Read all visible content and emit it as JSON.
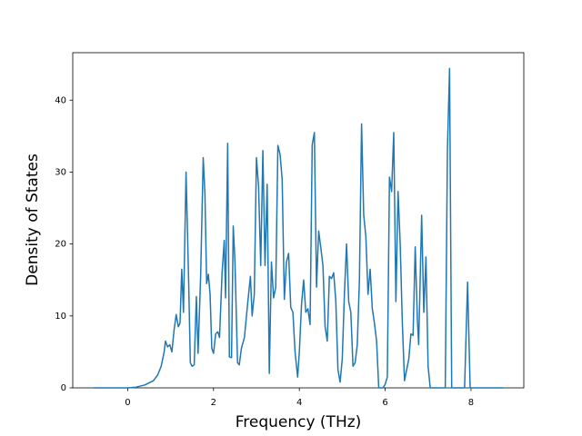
{
  "chart_data": {
    "type": "line",
    "xlabel": "Frequency (THz)",
    "ylabel": "Density of States",
    "color": "#1f77b4",
    "xlim": [
      -1.28,
      9.23
    ],
    "ylim": [
      0,
      46.6
    ],
    "xticks": [
      0,
      2,
      4,
      6,
      8
    ],
    "yticks": [
      0,
      10,
      20,
      30,
      40
    ],
    "x": [
      -0.8,
      0,
      0.2,
      0.4,
      0.6,
      0.7,
      0.78,
      0.85,
      0.88,
      0.93,
      0.98,
      1.03,
      1.08,
      1.13,
      1.18,
      1.22,
      1.26,
      1.3,
      1.36,
      1.42,
      1.46,
      1.5,
      1.55,
      1.6,
      1.64,
      1.7,
      1.76,
      1.8,
      1.84,
      1.88,
      1.92,
      1.96,
      2.0,
      2.05,
      2.1,
      2.14,
      2.2,
      2.25,
      2.28,
      2.33,
      2.37,
      2.42,
      2.46,
      2.5,
      2.56,
      2.6,
      2.65,
      2.72,
      2.8,
      2.86,
      2.9,
      2.95,
      3.0,
      3.05,
      3.1,
      3.15,
      3.2,
      3.25,
      3.3,
      3.35,
      3.4,
      3.45,
      3.5,
      3.55,
      3.6,
      3.65,
      3.7,
      3.75,
      3.8,
      3.85,
      3.9,
      3.96,
      4.0,
      4.05,
      4.1,
      4.15,
      4.2,
      4.25,
      4.3,
      4.35,
      4.4,
      4.45,
      4.5,
      4.55,
      4.6,
      4.65,
      4.7,
      4.75,
      4.8,
      4.85,
      4.9,
      4.95,
      5.0,
      5.05,
      5.1,
      5.15,
      5.2,
      5.25,
      5.3,
      5.35,
      5.4,
      5.45,
      5.5,
      5.55,
      5.6,
      5.65,
      5.7,
      5.75,
      5.8,
      5.85,
      5.95,
      6.0,
      6.05,
      6.1,
      6.15,
      6.2,
      6.25,
      6.3,
      6.35,
      6.4,
      6.45,
      6.5,
      6.55,
      6.6,
      6.65,
      6.7,
      6.75,
      6.78,
      6.85,
      6.9,
      6.95,
      7.0,
      7.05,
      7.4,
      7.45,
      7.5,
      7.55,
      7.85,
      7.92,
      7.98,
      8.75
    ],
    "values": [
      0,
      0,
      0.1,
      0.4,
      1.0,
      1.8,
      3.0,
      5.0,
      6.5,
      5.7,
      6.0,
      5.0,
      8.0,
      10.2,
      8.5,
      9.0,
      16.5,
      10.5,
      30,
      15,
      3.5,
      3.0,
      3.2,
      12.7,
      4.8,
      15.5,
      32,
      27,
      14.5,
      15.8,
      13,
      5.5,
      4.8,
      7.5,
      7.8,
      7.0,
      16,
      20.5,
      12.5,
      34,
      4.3,
      4.2,
      22.5,
      17.5,
      3.5,
      3.2,
      5.5,
      7,
      12,
      15.5,
      10,
      13,
      32,
      28,
      17,
      33,
      17,
      28.3,
      2.0,
      17.5,
      12.5,
      14,
      33.7,
      32.5,
      29,
      12.3,
      17.5,
      18.7,
      11.2,
      10.5,
      5,
      1.5,
      5,
      11.5,
      15,
      10.5,
      11,
      8.8,
      33.8,
      35.5,
      14,
      21.8,
      19.5,
      17,
      8.5,
      6.5,
      15.5,
      15.2,
      16,
      12,
      2.5,
      0.8,
      4,
      13,
      20,
      12,
      10.5,
      3,
      3.5,
      6,
      15,
      36.7,
      24,
      21,
      13,
      16.5,
      11,
      9,
      6.5,
      0,
      0,
      0.5,
      1.5,
      29.3,
      27.3,
      35.5,
      12,
      27.3,
      20,
      9,
      1,
      2.5,
      4,
      7.5,
      7.3,
      19.6,
      9.5,
      6,
      24,
      10.5,
      18.2,
      3,
      0,
      0,
      33,
      44.4,
      0,
      0,
      14.7,
      0,
      0
    ]
  }
}
